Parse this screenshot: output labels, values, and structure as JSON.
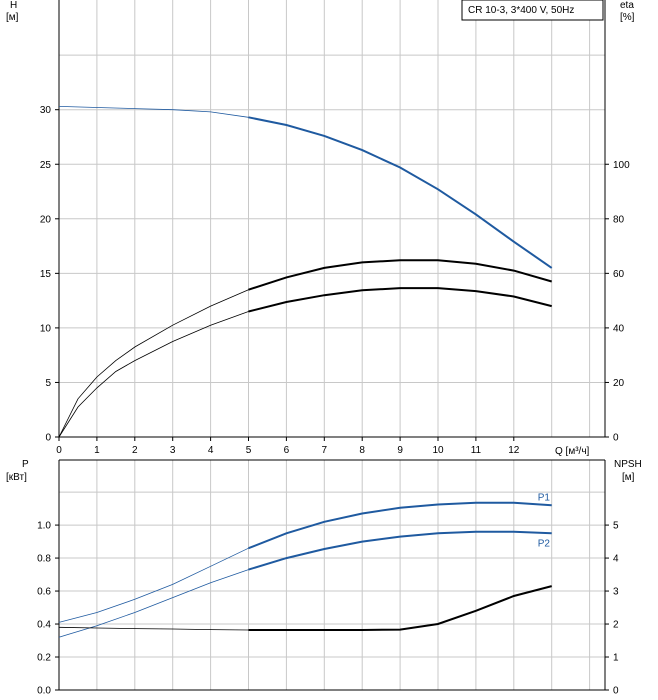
{
  "chart_data": [
    {
      "type": "line",
      "title": "",
      "legend_box": "CR 10-3, 3*400 V, 50Hz",
      "xlabel": "Q [м³/ч]",
      "ylabel_left": [
        "H",
        "[м]"
      ],
      "ylabel_right": [
        "eta",
        "[%]"
      ],
      "xlim": [
        0,
        14
      ],
      "ylim_left": [
        0,
        40
      ],
      "ylim_right": [
        0,
        160
      ],
      "x_ticks": [
        0,
        1,
        2,
        3,
        4,
        5,
        6,
        7,
        8,
        9,
        10,
        11,
        12
      ],
      "y_left_ticks": [
        0,
        5,
        10,
        15,
        20,
        25,
        30
      ],
      "y_right_ticks": [
        0,
        20,
        40,
        60,
        80,
        100
      ],
      "grid": true,
      "series": [
        {
          "key": "H",
          "color": "#1f5aa0",
          "thin_until": 5,
          "x": [
            0,
            1,
            2,
            3,
            4,
            5,
            6,
            7,
            8,
            9,
            10,
            11,
            12,
            13
          ],
          "y": [
            30.3,
            30.2,
            30.1,
            30.0,
            29.8,
            29.3,
            28.6,
            27.6,
            26.3,
            24.7,
            22.7,
            20.4,
            17.9,
            15.5
          ]
        },
        {
          "key": "eta_upper",
          "color": "#000000",
          "thin_until": 5,
          "axis": "right",
          "x": [
            0,
            0.5,
            1,
            1.5,
            2,
            3,
            4,
            5,
            6,
            7,
            8,
            9,
            10,
            11,
            12,
            13
          ],
          "y": [
            0,
            14,
            22,
            28,
            33,
            41,
            48,
            54,
            58.5,
            62,
            64,
            64.8,
            64.8,
            63.5,
            61,
            57
          ]
        },
        {
          "key": "eta_lower",
          "color": "#000000",
          "thin_until": 5,
          "axis": "right",
          "x": [
            0,
            0.5,
            1,
            1.5,
            2,
            3,
            4,
            5,
            6,
            7,
            8,
            9,
            10,
            11,
            12,
            13
          ],
          "y": [
            0,
            11,
            18,
            24,
            28,
            35,
            41,
            46,
            49.5,
            52,
            53.8,
            54.6,
            54.6,
            53.5,
            51.5,
            48
          ]
        }
      ]
    },
    {
      "type": "line",
      "title": "",
      "ylabel_left": [
        "P",
        "[кВт]"
      ],
      "ylabel_right": [
        "NPSH",
        "[м]"
      ],
      "xlim": [
        0,
        14
      ],
      "ylim_left": [
        0,
        1.3
      ],
      "ylim_right": [
        0,
        6.5
      ],
      "y_left_ticks": [
        "0.0",
        "0.2",
        "0.4",
        "0.6",
        "0.8",
        "1.0"
      ],
      "y_right_ticks": [
        0,
        1,
        2,
        3,
        4,
        5
      ],
      "grid": true,
      "series": [
        {
          "name": "P1",
          "color": "#1f5aa0",
          "thin_until": 5,
          "x": [
            0,
            1,
            2,
            3,
            4,
            5,
            6,
            7,
            8,
            9,
            10,
            11,
            12,
            13
          ],
          "y": [
            0.41,
            0.47,
            0.55,
            0.64,
            0.75,
            0.86,
            0.95,
            1.02,
            1.07,
            1.105,
            1.125,
            1.135,
            1.135,
            1.12
          ]
        },
        {
          "name": "P2",
          "color": "#1f5aa0",
          "thin_until": 5,
          "x": [
            0,
            1,
            2,
            3,
            4,
            5,
            6,
            7,
            8,
            9,
            10,
            11,
            12,
            13
          ],
          "y": [
            0.32,
            0.39,
            0.47,
            0.56,
            0.65,
            0.73,
            0.8,
            0.855,
            0.9,
            0.93,
            0.95,
            0.96,
            0.96,
            0.95
          ]
        },
        {
          "key": "NPSH",
          "color": "#000000",
          "thin_until": 5,
          "axis": "right",
          "x": [
            0,
            1,
            2,
            3,
            4,
            5,
            6,
            7,
            8,
            9,
            10,
            11,
            12,
            13
          ],
          "y": [
            1.9,
            1.88,
            1.86,
            1.85,
            1.83,
            1.82,
            1.82,
            1.82,
            1.82,
            1.83,
            2.0,
            2.4,
            2.85,
            3.15
          ]
        }
      ]
    }
  ]
}
